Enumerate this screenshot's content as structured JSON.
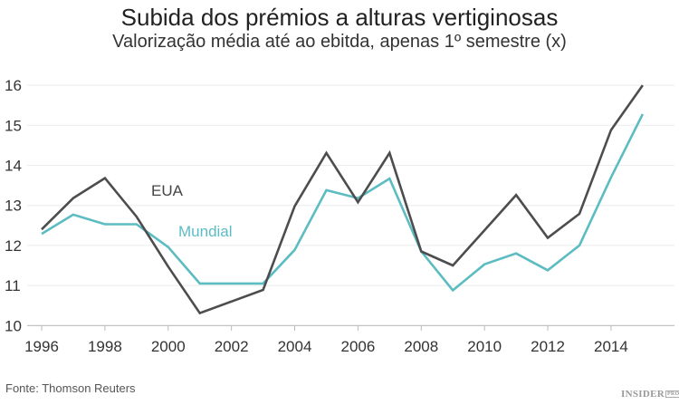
{
  "chart_data": {
    "type": "line",
    "title": "Subida dos prémios a alturas vertiginosas",
    "subtitle": "Valorização média até ao ebitda, apenas 1º semestre (x)",
    "xlabel": "",
    "ylabel": "",
    "x": [
      1996,
      1997,
      1998,
      1999,
      2000,
      2001,
      2002,
      2003,
      2004,
      2005,
      2006,
      2007,
      2008,
      2009,
      2010,
      2011,
      2012,
      2013,
      2014,
      2015
    ],
    "xlim": [
      1996,
      2016
    ],
    "ylim": [
      10,
      16
    ],
    "xticks": [
      "1996",
      "1998",
      "2000",
      "2002",
      "2004",
      "2006",
      "2008",
      "2010",
      "2012",
      "2014"
    ],
    "yticks": [
      "10",
      "11",
      "12",
      "13",
      "14",
      "15",
      "16"
    ],
    "grid": true,
    "series": [
      {
        "name": "EUA",
        "color": "#4d4d4f",
        "values": [
          12.4,
          13.18,
          13.68,
          12.72,
          11.47,
          10.31,
          10.6,
          10.89,
          12.98,
          14.31,
          13.08,
          14.31,
          11.85,
          11.5,
          12.38,
          13.26,
          12.19,
          12.79,
          14.88,
          16.0
        ]
      },
      {
        "name": "Mundial",
        "color": "#5bbcc1",
        "values": [
          12.29,
          12.77,
          12.53,
          12.53,
          11.96,
          11.05,
          11.05,
          11.05,
          11.89,
          13.38,
          13.18,
          13.67,
          11.85,
          10.88,
          11.53,
          11.8,
          11.38,
          12.0,
          13.7,
          15.28
        ]
      }
    ],
    "source": "Fonte: Thomson Reuters"
  },
  "branding": {
    "logo": "INSIDER",
    "logo_suffix": "PRO"
  }
}
